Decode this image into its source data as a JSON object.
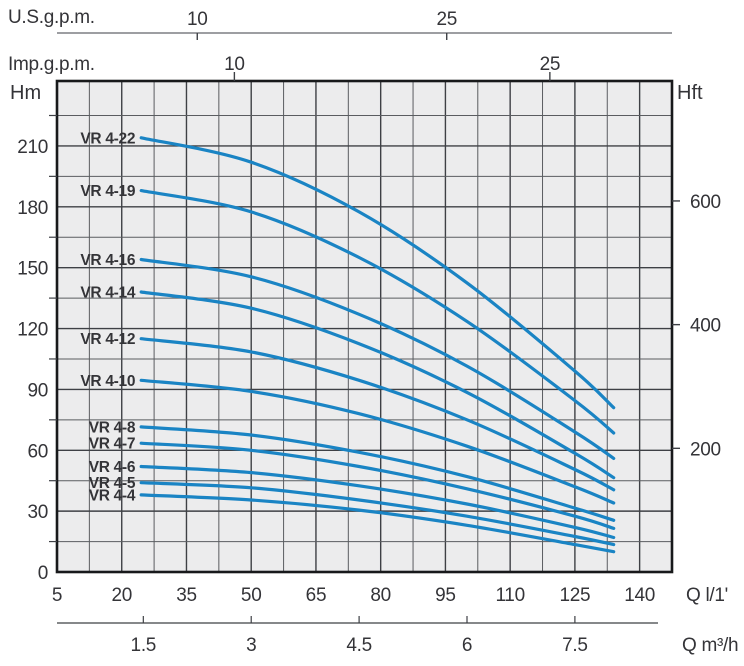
{
  "window": {
    "title": "VR 4 pump performance curves"
  },
  "chart_data": {
    "type": "line",
    "title": "",
    "x_axis_lpm": {
      "label": "Q l/1'",
      "ticks": [
        5,
        20,
        35,
        50,
        65,
        80,
        95,
        110,
        125,
        140
      ],
      "range_lpm": [
        5,
        147.5
      ]
    },
    "x_axis_m3h": {
      "label": "Q m³/h",
      "ticks": [
        1.5,
        3,
        4.5,
        6,
        7.5
      ],
      "lpm_per_unit": 16.6667
    },
    "x_axis_usgpm": {
      "label": "U.S.g.p.m.",
      "ticks": [
        {
          "text": "10",
          "lpm": 37.5
        },
        {
          "text": "25",
          "lpm": 95.3
        }
      ]
    },
    "x_axis_impgpm": {
      "label": "Imp.g.p.m.",
      "ticks": [
        {
          "text": "10",
          "lpm": 46.1
        },
        {
          "text": "25",
          "lpm": 119.2
        }
      ]
    },
    "y_axis_m": {
      "label": "Hm",
      "ticks": [
        0,
        30,
        60,
        90,
        120,
        150,
        180,
        210
      ],
      "range_m": [
        0,
        242
      ]
    },
    "y_axis_ft": {
      "label": "Hft",
      "ticks": [
        200,
        400,
        600
      ],
      "m_per_ft": 0.3048
    },
    "grid": {
      "minor_x_lpm": 7.5,
      "major_x_lpm": 15,
      "minor_y_m": 15,
      "major_y_m": 30,
      "grid_on": true
    },
    "legend_position": "left-of-curves",
    "q_lpm": [
      24.5,
      50,
      75,
      100,
      125,
      134
    ],
    "series": [
      {
        "name": "VR 4-22",
        "heads_m": [
          214,
          202,
          177.5,
          142.5,
          99,
          81
        ]
      },
      {
        "name": "VR 4-19",
        "heads_m": [
          188,
          177.5,
          155,
          123.5,
          84.5,
          68.5
        ]
      },
      {
        "name": "VR 4-16",
        "heads_m": [
          154,
          145.5,
          127,
          101.5,
          69,
          56
        ]
      },
      {
        "name": "VR 4-14",
        "heads_m": [
          138,
          130,
          112.5,
          88.5,
          58.5,
          46.5
        ]
      },
      {
        "name": "VR 4-12",
        "heads_m": [
          115,
          108.5,
          94.5,
          75,
          50.5,
          40.5
        ]
      },
      {
        "name": "VR 4-10",
        "heads_m": [
          94.5,
          89,
          78,
          62,
          42,
          34
        ]
      },
      {
        "name": "VR 4-8",
        "heads_m": [
          71.5,
          67.5,
          59,
          47,
          31.5,
          25.5
        ]
      },
      {
        "name": "VR 4-7",
        "heads_m": [
          63.5,
          60,
          52,
          41,
          27.5,
          21.5
        ]
      },
      {
        "name": "VR 4-6",
        "heads_m": [
          52,
          49,
          42.5,
          33.5,
          22,
          17
        ]
      },
      {
        "name": "VR 4-5",
        "heads_m": [
          44,
          41.5,
          35.5,
          27.5,
          17.5,
          13.5
        ]
      },
      {
        "name": "VR 4-4",
        "heads_m": [
          38,
          35.5,
          30.5,
          23,
          13.5,
          10
        ]
      }
    ],
    "colors": {
      "curve": "#1a84c4",
      "plot_bg": "#ececed",
      "grid_minor": "#5a5c60",
      "grid_major": "#3e4045",
      "border": "#18191b",
      "text": "#343438",
      "top_axis_line": "#7d7f83"
    }
  }
}
